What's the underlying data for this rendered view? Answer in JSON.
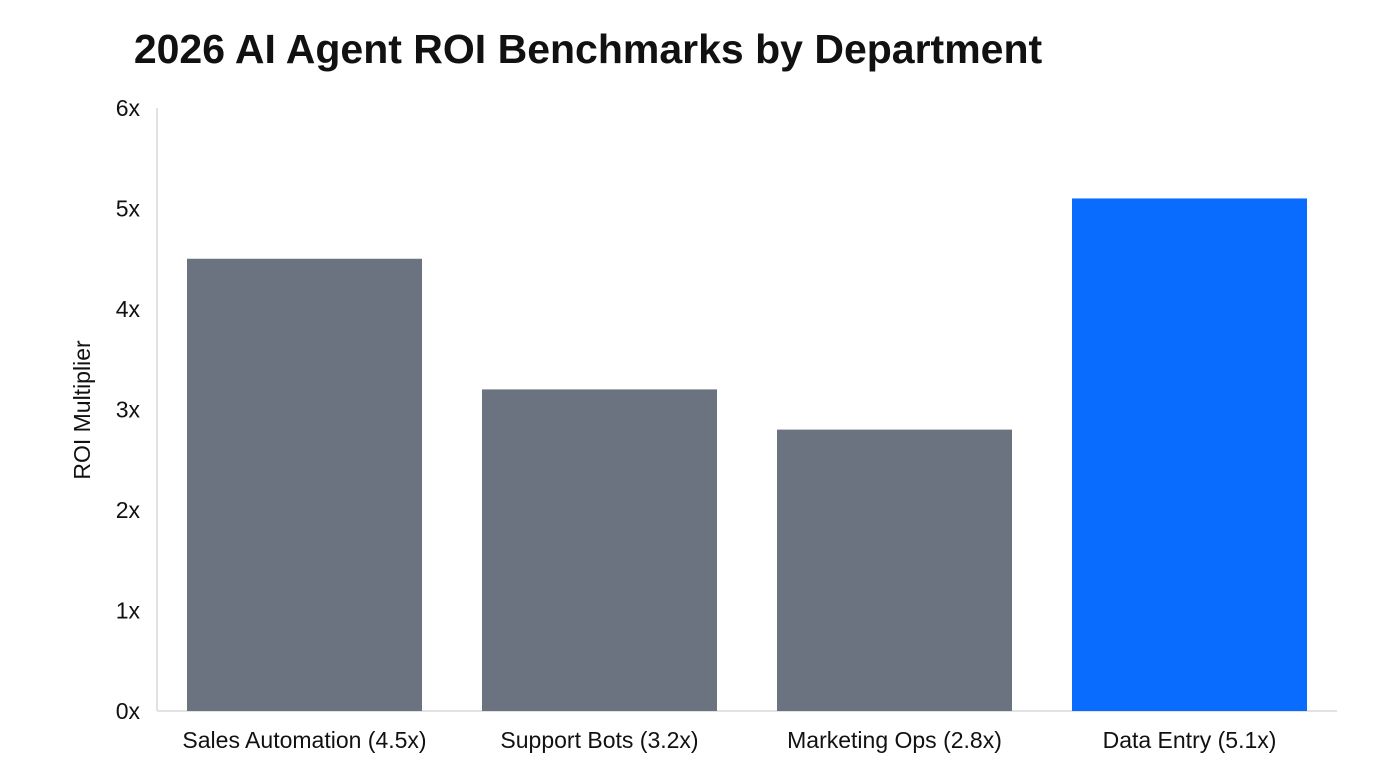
{
  "chart_data": {
    "type": "bar",
    "title": "2026 AI Agent ROI Benchmarks by Department",
    "xlabel": "",
    "ylabel": "ROI Multiplier",
    "categories": [
      "Sales Automation (4.5x)",
      "Support Bots (3.2x)",
      "Marketing Ops (2.8x)",
      "Data Entry (5.1x)"
    ],
    "values": [
      4.5,
      3.2,
      2.8,
      5.1
    ],
    "ylim": [
      0,
      6
    ],
    "yticks": [
      "0x",
      "1x",
      "2x",
      "3x",
      "4x",
      "5x",
      "6x"
    ],
    "grid": false,
    "colors": [
      "#6b7380",
      "#6b7380",
      "#6b7380",
      "#0a6cff"
    ],
    "highlight_color": "#0a6cff",
    "base_color": "#6b7380"
  }
}
